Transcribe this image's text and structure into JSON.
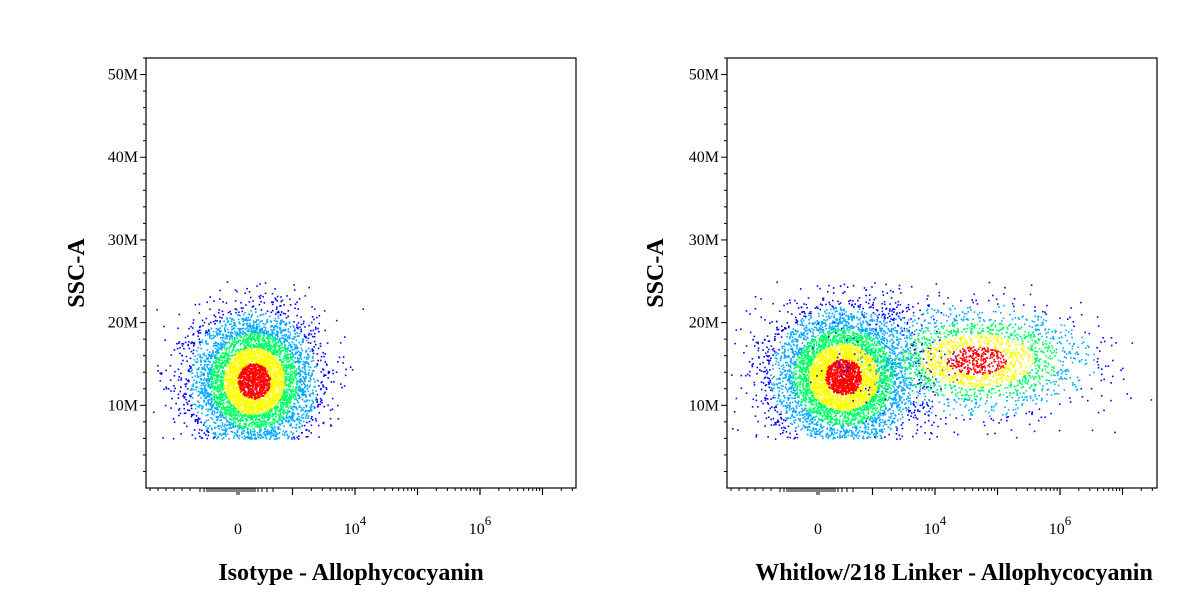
{
  "chart_data": [
    {
      "type": "scatter",
      "title": "",
      "xlabel": "Isotype - Allophycocyanin",
      "ylabel": "SSC-A",
      "x_scale": "biexponential",
      "x_ticks": [
        {
          "label": "0",
          "exp": ""
        },
        {
          "label": "10",
          "exp": "4"
        },
        {
          "label": "10",
          "exp": "6"
        }
      ],
      "y_ticks": [
        "10M",
        "20M",
        "30M",
        "40M",
        "50M"
      ],
      "ylim": [
        0,
        52000000
      ],
      "grid": false,
      "density_colors": [
        "#0000ff",
        "#00aaff",
        "#00ff66",
        "#ffff00",
        "#ff0000"
      ],
      "populations": [
        {
          "name": "",
          "x_center": 0.25,
          "x_spread": 0.07,
          "y_center": 13000000,
          "y_spread": 4000000,
          "count": 6000
        }
      ]
    },
    {
      "type": "scatter",
      "title": "",
      "xlabel": "Whitlow/218 Linker - Allophycocyanin",
      "ylabel": "SSC-A",
      "x_scale": "biexponential",
      "x_ticks": [
        {
          "label": "0",
          "exp": ""
        },
        {
          "label": "10",
          "exp": "4"
        },
        {
          "label": "10",
          "exp": "6"
        }
      ],
      "y_ticks": [
        "10M",
        "20M",
        "30M",
        "40M",
        "50M"
      ],
      "ylim": [
        0,
        52000000
      ],
      "grid": false,
      "density_colors": [
        "#0000ff",
        "#00aaff",
        "#00ff66",
        "#ffff00",
        "#ff0000"
      ],
      "populations": [
        {
          "name": "",
          "x_center": 0.27,
          "x_spread": 0.08,
          "y_center": 13500000,
          "y_spread": 4000000,
          "count": 6000
        },
        {
          "name": "",
          "x_center": 0.58,
          "x_spread": 0.13,
          "y_center": 15500000,
          "y_spread": 3200000,
          "count": 2200
        }
      ]
    }
  ]
}
